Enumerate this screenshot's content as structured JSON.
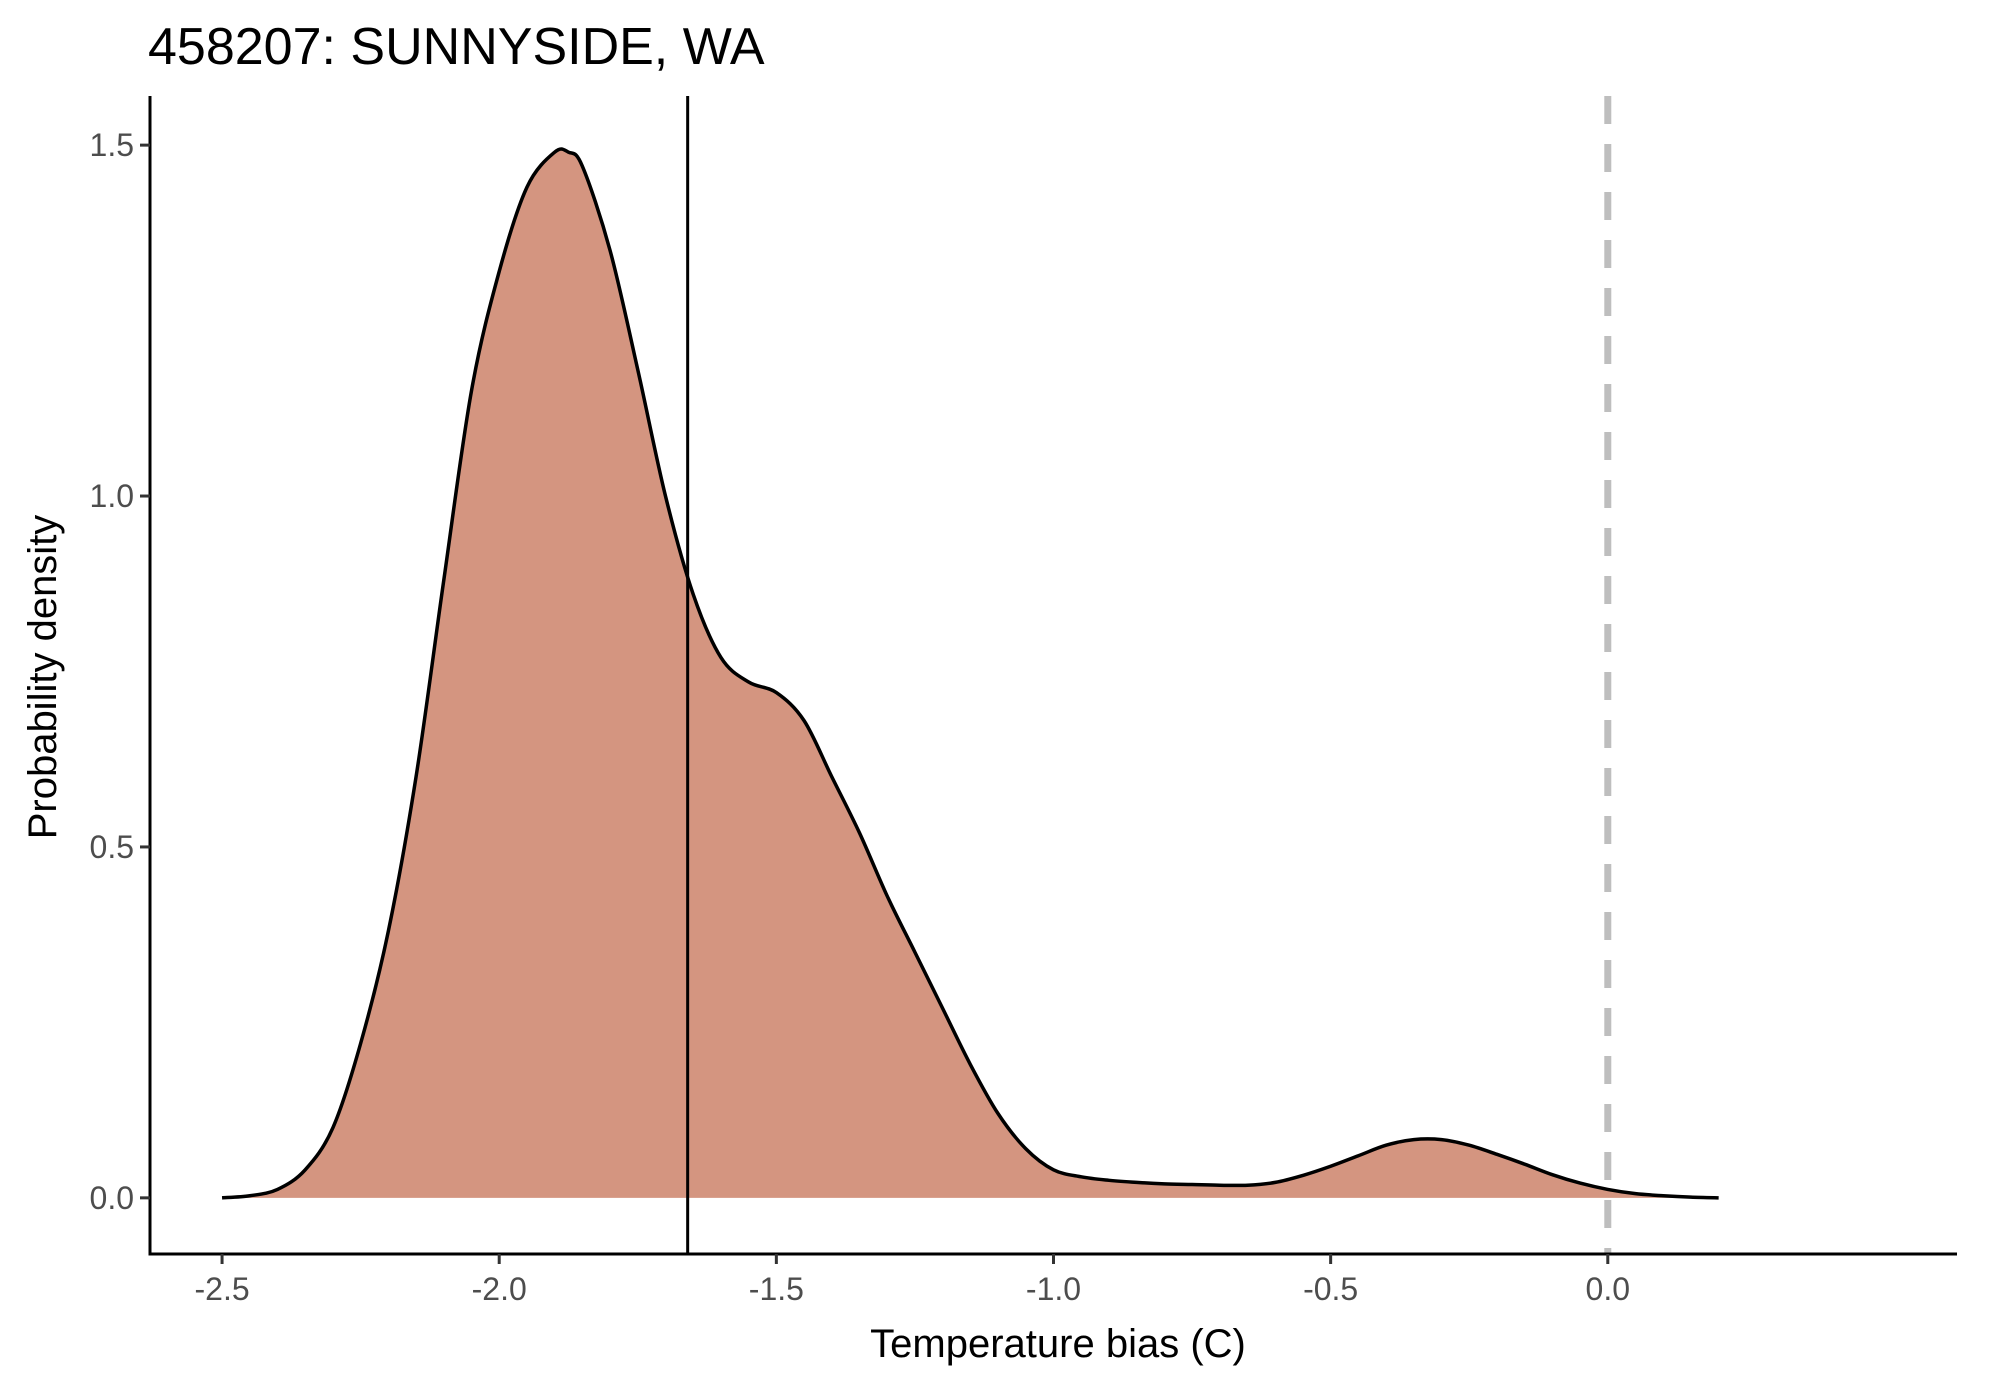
{
  "chart_data": {
    "type": "area",
    "title": "458207: SUNNYSIDE, WA",
    "xlabel": "Temperature bias (C)",
    "ylabel": "Probability density",
    "xlim": [
      -2.63,
      0.63
    ],
    "ylim": [
      -0.08,
      1.57
    ],
    "x_ticks": [
      -2.5,
      -2.0,
      -1.5,
      -1.0,
      -0.5,
      0.0
    ],
    "x_tick_labels": [
      "-2.5",
      "-2.0",
      "-1.5",
      "-1.0",
      "-0.5",
      "0.0"
    ],
    "y_ticks": [
      0.0,
      0.5,
      1.0,
      1.5
    ],
    "y_tick_labels": [
      "0.0",
      "0.5",
      "1.0",
      "1.5"
    ],
    "grid": false,
    "fill_color": "#d49580",
    "line_color": "#000000",
    "reference_lines": [
      {
        "x": -1.66,
        "style": "solid",
        "color": "#000000"
      },
      {
        "x": 0.0,
        "style": "dashed",
        "color": "#bebebe"
      }
    ],
    "series": [
      {
        "x": [
          -2.5,
          -2.45,
          -2.4,
          -2.35,
          -2.3,
          -2.25,
          -2.2,
          -2.15,
          -2.1,
          -2.05,
          -2.0,
          -1.95,
          -1.9,
          -1.875,
          -1.85,
          -1.8,
          -1.75,
          -1.7,
          -1.65,
          -1.6,
          -1.55,
          -1.5,
          -1.45,
          -1.4,
          -1.35,
          -1.3,
          -1.25,
          -1.2,
          -1.15,
          -1.1,
          -1.05,
          -1.0,
          -0.95,
          -0.9,
          -0.85,
          -0.8,
          -0.75,
          -0.7,
          -0.65,
          -0.6,
          -0.55,
          -0.5,
          -0.45,
          -0.4,
          -0.35,
          -0.3,
          -0.25,
          -0.2,
          -0.15,
          -0.1,
          -0.05,
          0.0,
          0.05,
          0.1,
          0.15,
          0.2
        ],
        "y": [
          0.0,
          0.003,
          0.012,
          0.04,
          0.1,
          0.22,
          0.38,
          0.6,
          0.88,
          1.15,
          1.32,
          1.44,
          1.49,
          1.49,
          1.47,
          1.35,
          1.18,
          1.0,
          0.86,
          0.77,
          0.735,
          0.72,
          0.68,
          0.6,
          0.52,
          0.43,
          0.35,
          0.27,
          0.19,
          0.12,
          0.07,
          0.04,
          0.03,
          0.025,
          0.022,
          0.02,
          0.019,
          0.018,
          0.018,
          0.022,
          0.032,
          0.045,
          0.06,
          0.075,
          0.083,
          0.083,
          0.075,
          0.062,
          0.048,
          0.033,
          0.021,
          0.012,
          0.006,
          0.003,
          0.001,
          0.0
        ]
      }
    ]
  }
}
